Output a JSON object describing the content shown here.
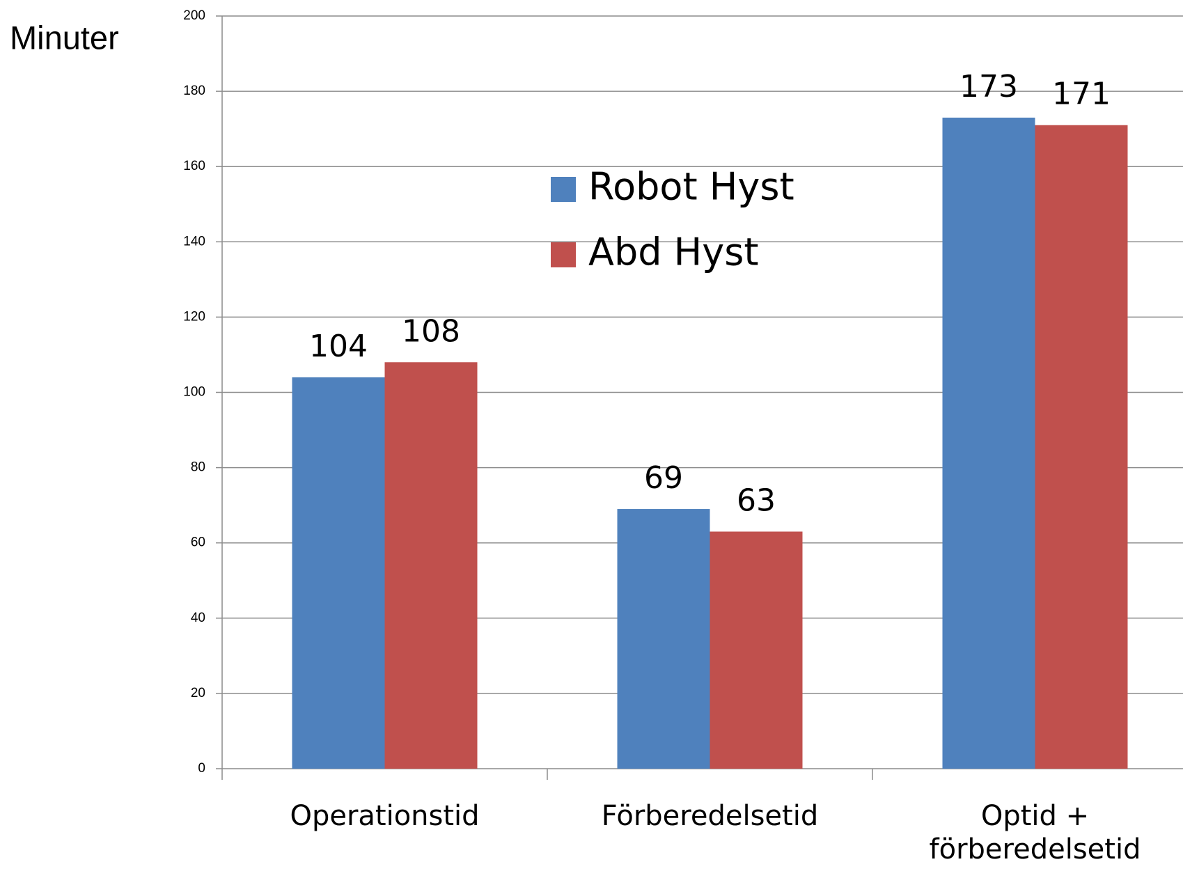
{
  "chart_data": {
    "type": "bar",
    "y_axis_label": "Minuter",
    "categories": [
      "Operationstid",
      "Förberedelsetid",
      "Optid + förberedelsetid"
    ],
    "series": [
      {
        "name": "Robot Hyst",
        "color": "#4f81bd",
        "values": [
          104,
          69,
          173
        ]
      },
      {
        "name": "Abd Hyst",
        "color": "#c0504d",
        "values": [
          108,
          63,
          171
        ]
      }
    ],
    "ylim": [
      0,
      200
    ],
    "yticks": [
      0,
      20,
      40,
      60,
      80,
      100,
      120,
      140,
      160,
      180,
      200
    ],
    "grid": true
  }
}
